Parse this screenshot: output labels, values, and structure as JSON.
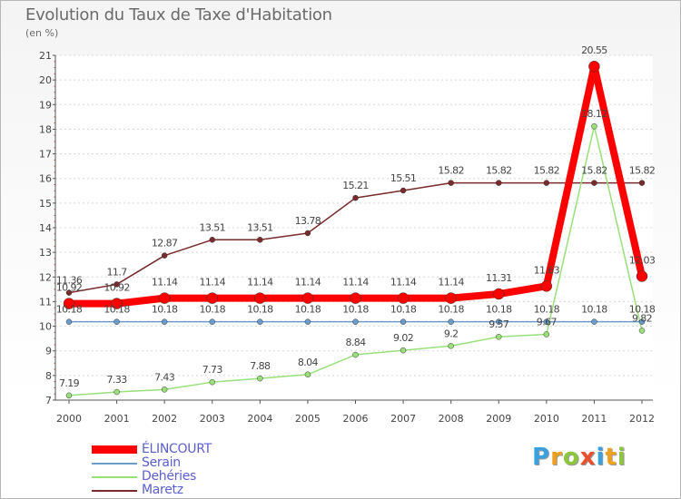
{
  "title": "Evolution du Taux de Taxe d'Habitation",
  "unit": "(en %)",
  "logo": {
    "text": "Proxiti",
    "letters": [
      {
        "ch": "P",
        "color": "#3aa0e0"
      },
      {
        "ch": "r",
        "color": "#f0a020"
      },
      {
        "ch": "o",
        "color": "#8cc63f"
      },
      {
        "ch": "x",
        "color": "#e94f2e"
      },
      {
        "ch": "i",
        "color": "#3aa0e0"
      },
      {
        "ch": "t",
        "color": "#f0a020"
      },
      {
        "ch": "i",
        "color": "#8cc63f"
      }
    ]
  },
  "chart_data": {
    "type": "line",
    "title": "Evolution du Taux de Taxe d'Habitation",
    "ylabel": "(en %)",
    "xlabel": "",
    "ylim": [
      7,
      21
    ],
    "yticks": [
      7,
      8,
      9,
      10,
      11,
      12,
      13,
      14,
      15,
      16,
      17,
      18,
      19,
      20,
      21
    ],
    "categories": [
      "2000",
      "2001",
      "2002",
      "2003",
      "2004",
      "2005",
      "2006",
      "2007",
      "2008",
      "2009",
      "2010",
      "2011",
      "2012"
    ],
    "grid": "horizontal dashed",
    "legend_position": "bottom-left",
    "series": [
      {
        "name": "Maretz",
        "color": "#7a2a2a",
        "values": [
          11.36,
          11.7,
          12.87,
          13.51,
          13.51,
          13.78,
          15.21,
          15.51,
          15.82,
          15.82,
          15.82,
          15.82,
          15.82
        ],
        "labels": [
          "11.36",
          "11.7",
          "12.87",
          "13.51",
          "13.51",
          "13.78",
          "15.21",
          "15.51",
          "15.82",
          "15.82",
          "15.82",
          "15.82",
          "15.82"
        ]
      },
      {
        "name": "Dehéries",
        "color": "#99e07a",
        "values": [
          7.19,
          7.33,
          7.43,
          7.73,
          7.88,
          8.04,
          8.84,
          9.02,
          9.2,
          9.57,
          9.67,
          18.12,
          9.82
        ],
        "labels": [
          "7.19",
          "7.33",
          "7.43",
          "7.73",
          "7.88",
          "8.04",
          "8.84",
          "9.02",
          "9.2",
          "9.57",
          "9.67",
          "18.12",
          "9.82"
        ]
      },
      {
        "name": "Serain",
        "color": "#6a9ccc",
        "values": [
          10.18,
          10.18,
          10.18,
          10.18,
          10.18,
          10.18,
          10.18,
          10.18,
          10.18,
          10.18,
          10.18,
          10.18,
          10.18
        ],
        "labels": [
          "10.18",
          "10.18",
          "10.18",
          "10.18",
          "10.18",
          "10.18",
          "10.18",
          "10.18",
          "10.18",
          "10.18",
          "10.18",
          "10.18",
          "10.18"
        ]
      },
      {
        "name": "ÉLINCOURT",
        "color": "#ff0000",
        "values": [
          10.92,
          10.92,
          11.14,
          11.14,
          11.14,
          11.14,
          11.14,
          11.14,
          11.14,
          11.31,
          11.63,
          20.55,
          12.03
        ],
        "labels": [
          "10.92",
          "10.92",
          "11.14",
          "11.14",
          "11.14",
          "11.14",
          "11.14",
          "11.14",
          "11.14",
          "11.31",
          "11.63",
          "20.55",
          "12.03"
        ]
      }
    ]
  },
  "legend": [
    {
      "name": "ÉLINCOURT",
      "color": "#ff0000"
    },
    {
      "name": "Serain",
      "color": "#6a9ccc"
    },
    {
      "name": "Dehéries",
      "color": "#99e07a"
    },
    {
      "name": "Maretz",
      "color": "#7a2a2a"
    }
  ]
}
